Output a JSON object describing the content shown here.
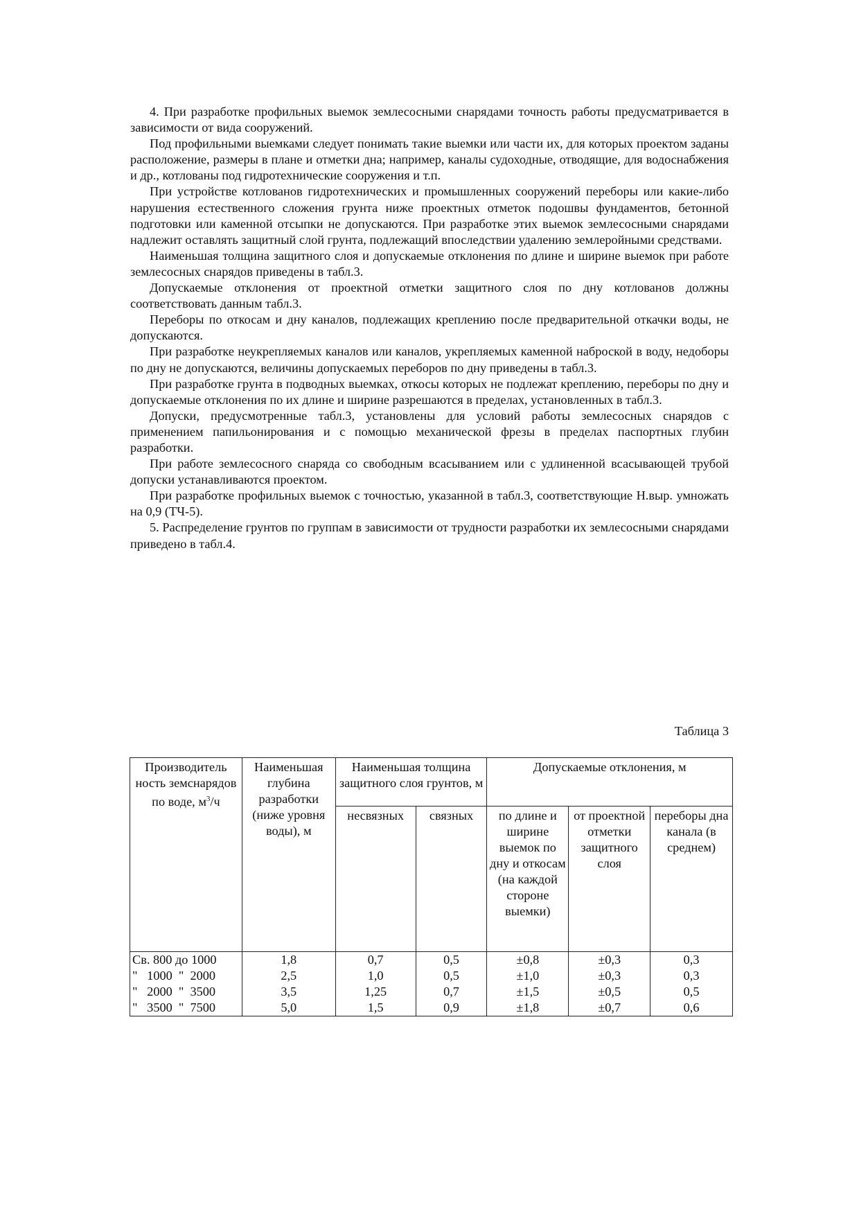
{
  "paragraphs": [
    "4. При разработке профильных выемок землесосными снарядами точность работы предусматривается в зависимости от вида сооружений.",
    "Под профильными выемками следует понимать такие выемки или части их, для которых проектом заданы расположение, размеры в плане и отметки дна; например, каналы судоходные, отводящие, для водоснабжения и др., котлованы под гидротехнические сооружения и т.п.",
    "При устройстве котлованов гидротехнических и промышленных сооружений переборы или какие-либо нарушения естественного сложения грунта ниже проектных отметок подошвы фундаментов, бетонной подготовки или каменной отсыпки не допускаются. При разработке этих выемок землесосными снарядами надлежит оставлять защитный слой грунта, подлежащий впоследствии удалению землеройными средствами.",
    "Наименьшая толщина защитного слоя и допускаемые отклонения по длине и ширине выемок при работе землесосных снарядов приведены в табл.3.",
    "Допускаемые отклонения от проектной отметки защитного слоя по дну котлованов должны соответствовать данным табл.3.",
    "Переборы по откосам и дну каналов, подлежащих креплению после предварительной откачки воды, не допускаются.",
    "При разработке неукрепляемых каналов или каналов, укрепляемых каменной наброской в воду, недоборы по дну не допускаются, величины допускаемых переборов по дну приведены в табл.3.",
    "При разработке грунта в подводных выемках, откосы которых не подлежат креплению, переборы по дну и допускаемые отклонения по их длине и ширине разрешаются в пределах, установленных в табл.3.",
    "Допуски, предусмотренные табл.3, установлены для условий работы землесосных снарядов с применением папильонирования и с помощью механической фрезы в пределах паспортных глубин разработки.",
    "При работе землесосного снаряда со свободным всасыванием или с удлиненной всасывающей трубой допуски устанавливаются проектом.",
    "При разработке профильных выемок с точностью, указанной в табл.3, соответствующие Н.выр. умножать на 0,9 (ТЧ-5).",
    "5. Распределение грунтов по группам в зависимости от трудности разработки их землесосными снарядами приведено в табл.4."
  ],
  "table": {
    "caption": "Таблица 3",
    "h_col1": "Производитель ность земснарядов по воде, м",
    "h_col1_sup": "3",
    "h_col1_tail": "/ч",
    "h_col2": "Наименьшая глубина разработки (ниже уровня воды), м",
    "h_group1": "Наименьшая толщина защитного слоя грунтов, м",
    "h_group2": "Допускаемые отклонения, м",
    "sub": [
      "несвязных",
      "связных",
      "по длине и ширине выемок по дну и откосам (на каждой стороне выемки)",
      "от проектной отметки защитного слоя",
      "переборы дна канала (в среднем)"
    ],
    "rows": [
      [
        "Св. 800 до 1000",
        "1,8",
        "0,7",
        "0,5",
        "±0,8",
        "±0,3",
        "0,3"
      ],
      [
        "\"   1000  \"  2000",
        "2,5",
        "1,0",
        "0,5",
        "±1,0",
        "±0,3",
        "0,3"
      ],
      [
        "\"   2000  \"  3500",
        "3,5",
        "1,25",
        "0,7",
        "±1,5",
        "±0,5",
        "0,5"
      ],
      [
        "\"   3500  \"  7500",
        "5,0",
        "1,5",
        "0,9",
        "±1,8",
        "±0,7",
        "0,6"
      ]
    ]
  }
}
